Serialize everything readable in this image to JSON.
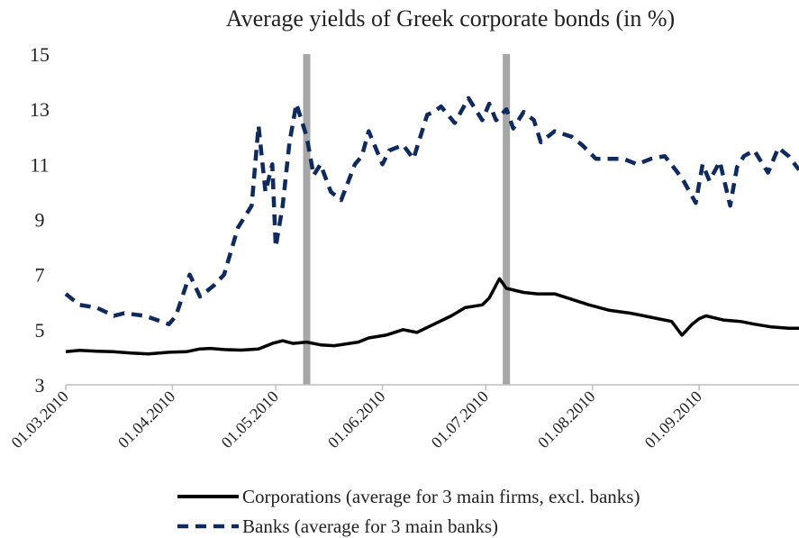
{
  "chart_data": {
    "type": "line",
    "title": "Average  yields of Greek corporate bonds (in %)",
    "ylim": [
      3,
      15
    ],
    "yticks": [
      "15",
      "13",
      "11",
      "9",
      "7",
      "5",
      "3"
    ],
    "xlim": [
      "2010-03-01",
      "2010-09-30"
    ],
    "xticks": [
      "01.03.2010",
      "01.04.2010",
      "01.05.2010",
      "01.06.2010",
      "01.07.2010",
      "01.08.2010",
      "01.09.2010"
    ],
    "grid": false,
    "legend_position": "bottom",
    "vertical_markers": [
      "2010-05-10",
      "2010-07-07"
    ],
    "series": [
      {
        "name": "Corporations (average for 3 main firms, excl. banks)",
        "color": "#000000",
        "style": "solid",
        "x": [
          "2010-03-01",
          "2010-03-05",
          "2010-03-10",
          "2010-03-15",
          "2010-03-20",
          "2010-03-25",
          "2010-03-31",
          "2010-04-05",
          "2010-04-09",
          "2010-04-12",
          "2010-04-16",
          "2010-04-21",
          "2010-04-26",
          "2010-04-30",
          "2010-05-03",
          "2010-05-06",
          "2010-05-10",
          "2010-05-14",
          "2010-05-18",
          "2010-05-25",
          "2010-05-28",
          "2010-06-02",
          "2010-06-07",
          "2010-06-11",
          "2010-06-16",
          "2010-06-21",
          "2010-06-25",
          "2010-06-30",
          "2010-07-02",
          "2010-07-05",
          "2010-07-07",
          "2010-07-12",
          "2010-07-16",
          "2010-07-21",
          "2010-07-26",
          "2010-07-31",
          "2010-08-06",
          "2010-08-12",
          "2010-08-16",
          "2010-08-20",
          "2010-08-24",
          "2010-08-27",
          "2010-08-30",
          "2010-09-01",
          "2010-09-03",
          "2010-09-08",
          "2010-09-13",
          "2010-09-17",
          "2010-09-22",
          "2010-09-27",
          "2010-09-30"
        ],
        "values": [
          4.2,
          4.25,
          4.22,
          4.2,
          4.15,
          4.12,
          4.18,
          4.2,
          4.3,
          4.32,
          4.28,
          4.26,
          4.3,
          4.5,
          4.6,
          4.5,
          4.55,
          4.45,
          4.42,
          4.55,
          4.7,
          4.8,
          5.0,
          4.9,
          5.2,
          5.5,
          5.8,
          5.9,
          6.15,
          6.85,
          6.5,
          6.35,
          6.3,
          6.3,
          6.1,
          5.9,
          5.7,
          5.6,
          5.5,
          5.4,
          5.3,
          4.8,
          5.2,
          5.4,
          5.5,
          5.35,
          5.3,
          5.2,
          5.1,
          5.05,
          5.05
        ]
      },
      {
        "name": "Banks (average for 3 main banks)",
        "color": "#0f2a5c",
        "style": "dashed",
        "x": [
          "2010-03-01",
          "2010-03-05",
          "2010-03-10",
          "2010-03-15",
          "2010-03-18",
          "2010-03-24",
          "2010-03-31",
          "2010-04-02",
          "2010-04-06",
          "2010-04-09",
          "2010-04-13",
          "2010-04-16",
          "2010-04-20",
          "2010-04-24",
          "2010-04-26",
          "2010-04-28",
          "2010-04-30",
          "2010-05-01",
          "2010-05-03",
          "2010-05-05",
          "2010-05-07",
          "2010-05-10",
          "2010-05-12",
          "2010-05-14",
          "2010-05-17",
          "2010-05-20",
          "2010-05-24",
          "2010-05-26",
          "2010-05-28",
          "2010-06-01",
          "2010-06-03",
          "2010-06-07",
          "2010-06-10",
          "2010-06-14",
          "2010-06-16",
          "2010-06-18",
          "2010-06-22",
          "2010-06-26",
          "2010-06-30",
          "2010-07-02",
          "2010-07-04",
          "2010-07-07",
          "2010-07-09",
          "2010-07-12",
          "2010-07-15",
          "2010-07-17",
          "2010-07-21",
          "2010-07-26",
          "2010-07-29",
          "2010-08-02",
          "2010-08-06",
          "2010-08-10",
          "2010-08-14",
          "2010-08-18",
          "2010-08-22",
          "2010-08-27",
          "2010-08-31",
          "2010-09-02",
          "2010-09-04",
          "2010-09-07",
          "2010-09-10",
          "2010-09-12",
          "2010-09-14",
          "2010-09-17",
          "2010-09-21",
          "2010-09-24",
          "2010-09-27",
          "2010-09-30"
        ],
        "values": [
          6.3,
          5.9,
          5.8,
          5.5,
          5.6,
          5.5,
          5.2,
          5.5,
          7.0,
          6.2,
          6.6,
          7.0,
          8.7,
          9.5,
          12.4,
          10.0,
          11.0,
          8.0,
          9.5,
          11.8,
          13.2,
          12.0,
          10.6,
          11.0,
          10.0,
          9.7,
          11.0,
          11.3,
          12.2,
          11.0,
          11.5,
          11.7,
          11.2,
          12.8,
          12.9,
          13.1,
          12.5,
          13.4,
          12.6,
          13.2,
          12.6,
          13.0,
          12.3,
          12.9,
          12.6,
          11.8,
          12.2,
          12.0,
          11.7,
          11.2,
          11.2,
          11.2,
          11.0,
          11.2,
          11.3,
          10.5,
          9.6,
          11.0,
          10.4,
          11.1,
          9.5,
          10.9,
          11.3,
          11.5,
          10.7,
          11.6,
          11.3,
          10.8
        ]
      }
    ]
  }
}
